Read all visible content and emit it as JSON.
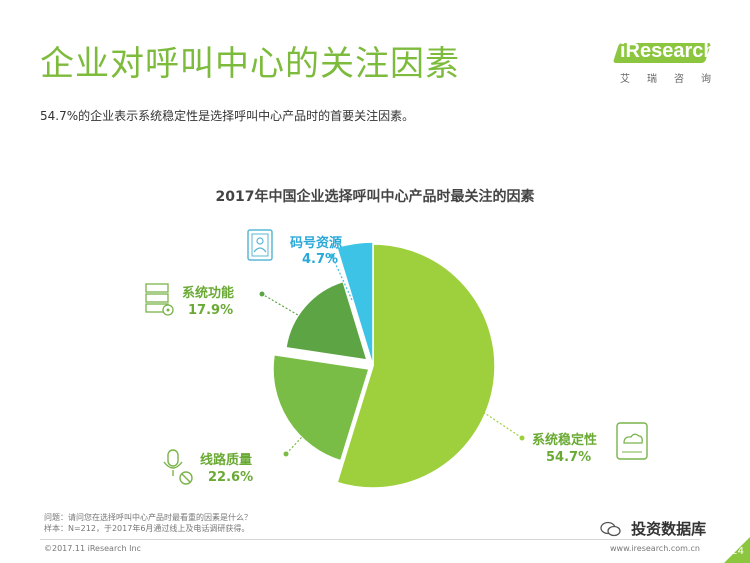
{
  "header": {
    "title": "企业对呼叫中心的关注因素",
    "subtitle": "54.7%的企业表示系统稳定性是选择呼叫中心产品时的首要关注因素。"
  },
  "logo": {
    "text": "iResearch",
    "sub": "艾瑞咨询",
    "color": "#8cc63f"
  },
  "chart_data": {
    "type": "pie",
    "title": "2017年中国企业选择呼叫中心产品时最关注的因素",
    "slices": [
      {
        "label": "系统稳定性",
        "value": 54.7,
        "display": "54.7%",
        "color": "#9dd03c",
        "icon": "cloud-server-icon"
      },
      {
        "label": "线路质量",
        "value": 22.6,
        "display": "22.6%",
        "color": "#79bd46",
        "icon": "microphone-mute-icon"
      },
      {
        "label": "系统功能",
        "value": 17.9,
        "display": "17.9%",
        "color": "#5da544",
        "icon": "server-gear-icon"
      },
      {
        "label": "码号资源",
        "value": 4.7,
        "display": "4.7%",
        "color": "#3cc3e6",
        "icon": "contact-book-icon"
      }
    ],
    "start_angle": "12 o'clock, clockwise",
    "legend": "none"
  },
  "footer": {
    "note_line1": "问题：请问您在选择呼叫中心产品时最看重的因素是什么？",
    "note_line2": "样本：N=212，于2017年6月通过线上及电话调研获得。",
    "copyright": "©2017.11 iResearch Inc",
    "url": "www.iresearch.com.cn",
    "wechat": "投资数据库",
    "page": "24"
  },
  "colors": {
    "title": "#7dbb3c",
    "accent": "#8cc63f",
    "label_green": "#6aaa34",
    "label_blue": "#2aa9d8"
  }
}
